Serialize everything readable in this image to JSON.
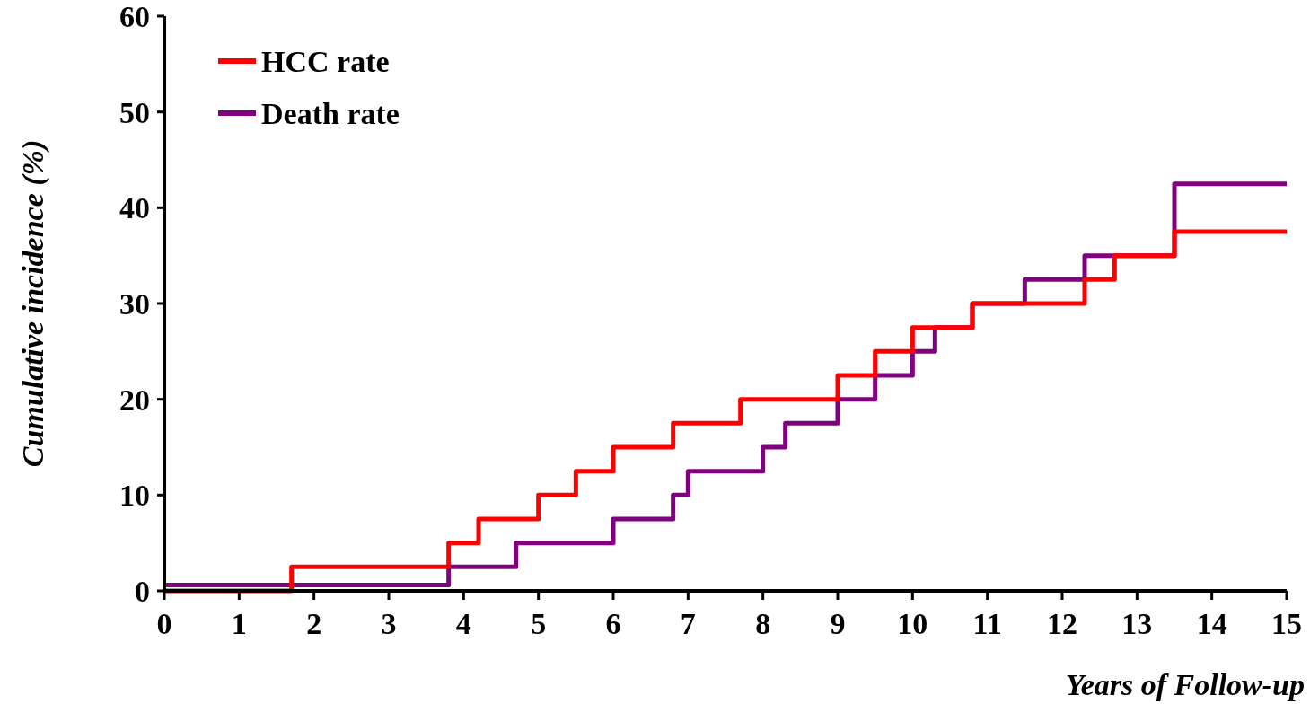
{
  "chart_data": {
    "type": "step",
    "xlabel": "Years of Follow-up",
    "ylabel": "Cumulative incidence (%)",
    "xlim": [
      0,
      15
    ],
    "xticks": [
      0,
      1,
      2,
      3,
      4,
      5,
      6,
      7,
      8,
      9,
      10,
      11,
      12,
      13,
      14,
      15
    ],
    "ylim": [
      0,
      60
    ],
    "yticks": [
      0,
      10,
      20,
      30,
      40,
      50,
      60
    ],
    "grid": false,
    "legend": "top left",
    "line_style": "solid",
    "marker": "none",
    "series": [
      {
        "name": "HCC rate",
        "color": "#ff0000",
        "x": [
          0,
          1.7,
          3.8,
          4.2,
          5,
          5.5,
          6,
          6.8,
          7.7,
          9,
          9.5,
          10,
          10.8,
          12.3,
          12.7,
          13.5,
          15
        ],
        "values": [
          0,
          2.5,
          5,
          7.5,
          10,
          12.5,
          15,
          17.5,
          20,
          22.5,
          25,
          27.5,
          30,
          32.5,
          35,
          37.5,
          37.5
        ]
      },
      {
        "name": "Death rate",
        "color": "#800080",
        "x": [
          0,
          3.8,
          4.7,
          6,
          6.8,
          7,
          8,
          8.3,
          9,
          9.5,
          10,
          10.3,
          10.8,
          11.5,
          12.3,
          13.5,
          15
        ],
        "values": [
          0.6,
          2.5,
          5,
          7.5,
          10,
          12.5,
          15,
          17.5,
          20,
          22.5,
          25,
          27.5,
          30,
          32.5,
          35,
          42.5,
          42.5
        ]
      }
    ]
  }
}
